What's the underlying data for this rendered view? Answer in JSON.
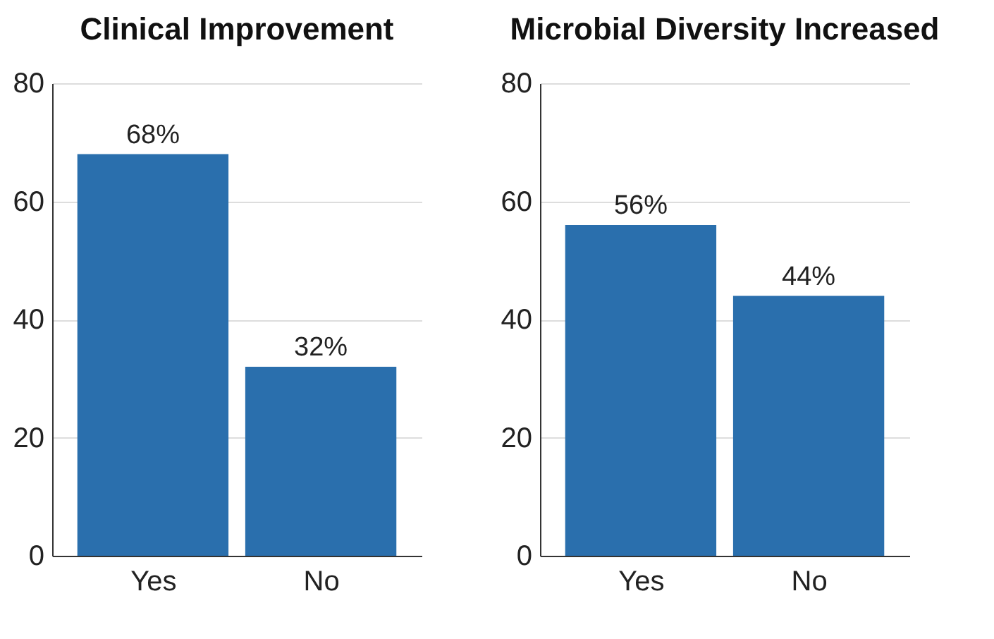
{
  "chart_data": [
    {
      "type": "bar",
      "title": "Clinical Improvement",
      "categories": [
        "Yes",
        "No"
      ],
      "values": [
        68,
        32
      ],
      "value_labels": [
        "68%",
        "32%"
      ],
      "color": "#2a6fad",
      "ylim": [
        0,
        80
      ],
      "yticks": [
        0,
        20,
        40,
        60,
        80
      ],
      "grid": "y"
    },
    {
      "type": "bar",
      "title": "Microbial Diversity Increased",
      "categories": [
        "Yes",
        "No"
      ],
      "values": [
        56,
        44
      ],
      "value_labels": [
        "56%",
        "44%"
      ],
      "color": "#2a6fad",
      "ylim": [
        0,
        80
      ],
      "yticks": [
        0,
        20,
        40,
        60,
        80
      ],
      "grid": "y"
    }
  ]
}
